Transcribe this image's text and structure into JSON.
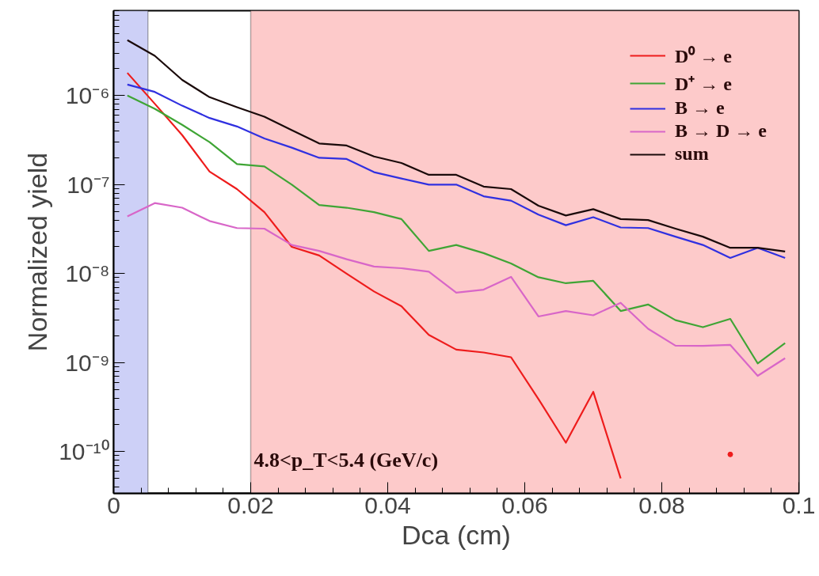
{
  "chart_data": {
    "type": "line",
    "xlabel": "Dca (cm)",
    "ylabel": "Normalized yield",
    "x": [
      0.002,
      0.006,
      0.01,
      0.014,
      0.018,
      0.022,
      0.026,
      0.03,
      0.034,
      0.038,
      0.042,
      0.046,
      0.05,
      0.054,
      0.058,
      0.062,
      0.066,
      0.07,
      0.074,
      0.078,
      0.082,
      0.086,
      0.09,
      0.094,
      0.098
    ],
    "series": [
      {
        "name": "D⁰ → e",
        "color": "#ee1c1c",
        "values": [
          1.8e-06,
          8.1e-07,
          3.6e-07,
          1.4e-07,
          8.9e-08,
          4.9e-08,
          2e-08,
          1.6e-08,
          1e-08,
          6.3e-09,
          4.3e-09,
          2.05e-09,
          1.4e-09,
          1.3e-09,
          1.15e-09,
          3.9e-10,
          1.26e-10,
          4.7e-10,
          5e-11,
          null,
          null,
          null,
          9.3e-11,
          null,
          null
        ]
      },
      {
        "name": "D⁺ → e",
        "color": "#3fa535",
        "values": [
          1e-06,
          7.1e-07,
          4.7e-07,
          3e-07,
          1.7e-07,
          1.6e-07,
          1e-07,
          5.9e-08,
          5.5e-08,
          4.9e-08,
          4.1e-08,
          1.8e-08,
          2.1e-08,
          1.7e-08,
          1.3e-08,
          9.1e-09,
          7.8e-09,
          8.3e-09,
          3.8e-09,
          4.5e-09,
          3e-09,
          2.5e-09,
          3.1e-09,
          9.8e-10,
          1.66e-09
        ]
      },
      {
        "name": "B → e",
        "color": "#3030e0",
        "values": [
          1.33e-06,
          1.1e-06,
          7.7e-07,
          5.6e-07,
          4.5e-07,
          3.3e-07,
          2.6e-07,
          2e-07,
          1.94e-07,
          1.38e-07,
          1.17e-07,
          1e-07,
          1e-07,
          7.4e-08,
          6.6e-08,
          4.6e-08,
          3.5e-08,
          4.3e-08,
          3.3e-08,
          3.25e-08,
          2.6e-08,
          2.1e-08,
          1.5e-08,
          1.95e-08,
          1.5e-08
        ]
      },
      {
        "name": "B → D → e",
        "color": "#d866c8",
        "values": [
          4.4e-08,
          6.2e-08,
          5.5e-08,
          3.9e-08,
          3.25e-08,
          3.2e-08,
          2.1e-08,
          1.8e-08,
          1.45e-08,
          1.2e-08,
          1.15e-08,
          1.05e-08,
          6.1e-09,
          6.6e-09,
          9.2e-09,
          3.3e-09,
          3.8e-09,
          3.4e-09,
          4.7e-09,
          2.4e-09,
          1.55e-09,
          1.54e-09,
          1.58e-09,
          7.1e-10,
          1.12e-09
        ]
      },
      {
        "name": "sum",
        "color": "#1a0a0a",
        "values": [
          4.2e-06,
          2.8e-06,
          1.5e-06,
          9.6e-07,
          7.4e-07,
          5.8e-07,
          4.1e-07,
          2.9e-07,
          2.75e-07,
          2.07e-07,
          1.75e-07,
          1.29e-07,
          1.29e-07,
          9.5e-08,
          8.9e-08,
          5.8e-08,
          4.5e-08,
          5.3e-08,
          4.1e-08,
          4e-08,
          3.2e-08,
          2.6e-08,
          1.95e-08,
          1.95e-08,
          1.77e-08
        ]
      }
    ],
    "log": "y",
    "xlim": [
      0,
      0.1
    ],
    "xticks": [
      0,
      0.02,
      0.04,
      0.06,
      0.08,
      0.1
    ],
    "ylim": [
      3.4e-11,
      9e-06
    ],
    "yticks": [
      {
        "value": 1e-10,
        "label": "10⁻¹⁰"
      },
      {
        "value": 1e-09,
        "label": "10⁻⁹"
      },
      {
        "value": 1e-08,
        "label": "10⁻⁸"
      },
      {
        "value": 1e-07,
        "label": "10⁻⁷"
      },
      {
        "value": 1e-06,
        "label": "10⁻⁶"
      }
    ],
    "bands": [
      {
        "axis": "x",
        "from": 0,
        "to": 0.005,
        "color": "#cdd0f7"
      },
      {
        "axis": "x",
        "from": 0.02,
        "to": 0.1,
        "color": "#fdcaca"
      }
    ],
    "annotations": [
      {
        "text": "4.8<p_T<5.4 (GeV/c)",
        "x": 0.02,
        "y": 6e-11
      }
    ],
    "legend": "top right",
    "grid": false,
    "marker": "none",
    "line_style": "solid"
  }
}
